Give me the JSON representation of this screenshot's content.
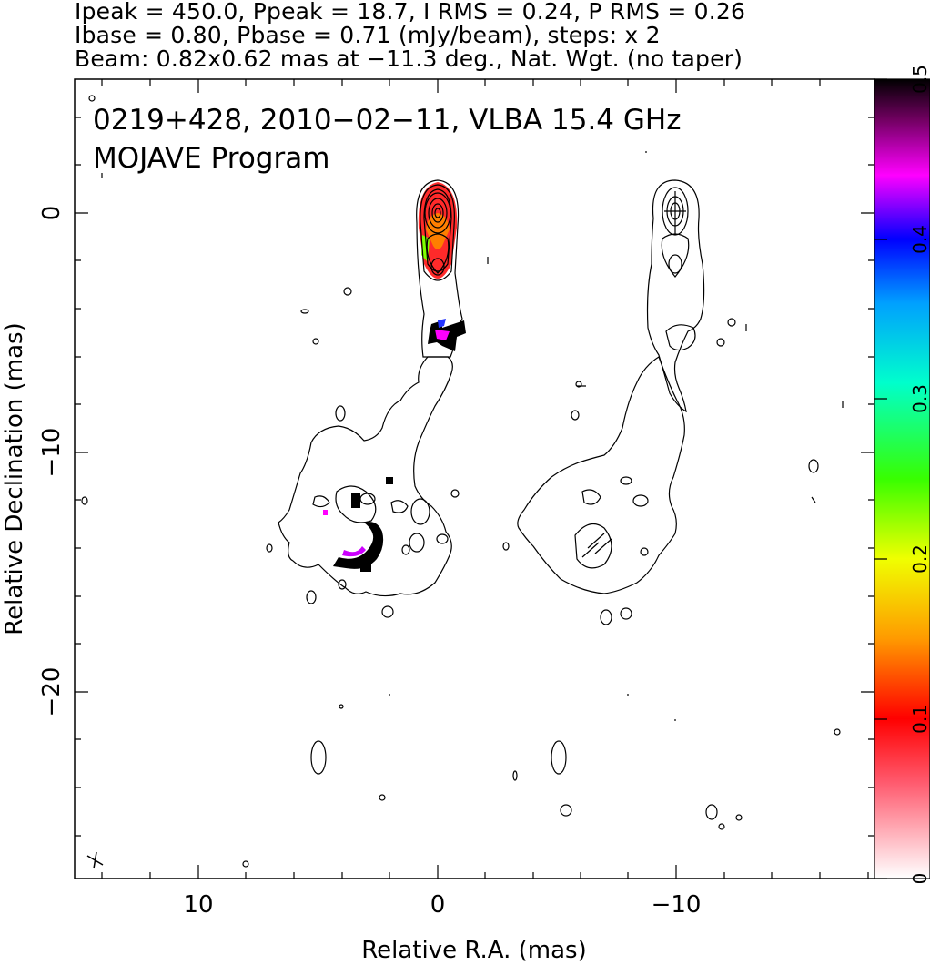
{
  "header": {
    "line1": "Ipeak = 450.0, Ppeak = 18.7, I RMS = 0.24, P RMS = 0.26",
    "line2": "Ibase = 0.80, Pbase = 0.71 (mJy/beam), steps: x 2",
    "line3": "Beam: 0.82x0.62 mas at −11.3 deg., Nat. Wgt. (no taper)"
  },
  "plot": {
    "source_line1": "0219+428, 2010−02−11, VLBA 15.4 GHz",
    "source_line2": "MOJAVE Program"
  },
  "chart_data": {
    "type": "contour",
    "xlabel": "Relative R.A. (mas)",
    "ylabel": "Relative Declination (mas)",
    "xlim": [
      15,
      -18
    ],
    "ylim": [
      -28,
      5.6
    ],
    "x_ticks": [
      10,
      0,
      -10
    ],
    "x_tick_labels": [
      "10",
      "0",
      "−10"
    ],
    "y_ticks": [
      0,
      -10,
      -20
    ],
    "y_tick_labels": [
      "0",
      "−10",
      "−20"
    ],
    "colorbar": {
      "range": [
        0,
        0.5
      ],
      "ticks": [
        0,
        0.1,
        0.2,
        0.3,
        0.4,
        0.5
      ],
      "tick_labels": [
        "0",
        "0.1",
        "0.2",
        "0.3",
        "0.4",
        "0.5"
      ]
    },
    "beam": {
      "major": 0.82,
      "minor": 0.62,
      "pa_deg": -11.3
    },
    "peak_position": {
      "x": 0,
      "y": 0
    },
    "secondary_panel_offset_ra": -10
  }
}
